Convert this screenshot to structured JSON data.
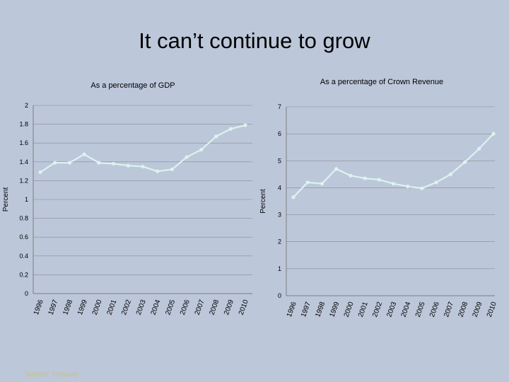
{
  "slide": {
    "title": "It can’t continue to grow",
    "source": "Source: Treasury"
  },
  "colors": {
    "background": "#bcc7da",
    "series": "#dcf3f0",
    "axis": "#7f7f7f",
    "grid": "#8c8c8c",
    "source_text": "#c8c27c"
  },
  "chart_data": [
    {
      "type": "line",
      "title": "As a percentage of GDP",
      "xlabel": "",
      "ylabel": "Percent",
      "categories": [
        "1996",
        "1997",
        "1998",
        "1999",
        "2000",
        "2001",
        "2002",
        "2003",
        "2004",
        "2005",
        "2006",
        "2007",
        "2008",
        "2009",
        "2010"
      ],
      "values": [
        1.29,
        1.39,
        1.39,
        1.48,
        1.39,
        1.38,
        1.36,
        1.35,
        1.3,
        1.32,
        1.45,
        1.53,
        1.67,
        1.75,
        1.79
      ],
      "ylim": [
        0,
        2
      ],
      "yticks": [
        "0",
        "0.2",
        "0.4",
        "0.6",
        "0.8",
        "1",
        "1.2",
        "1.4",
        "1.6",
        "1.8",
        "2"
      ],
      "grid": true
    },
    {
      "type": "line",
      "title": "As a percentage of Crown Revenue",
      "xlabel": "",
      "ylabel": "Percent",
      "categories": [
        "1996",
        "1997",
        "1998",
        "1999",
        "2000",
        "2001",
        "2002",
        "2003",
        "2004",
        "2005",
        "2006",
        "2007",
        "2008",
        "2009",
        "2010"
      ],
      "values": [
        3.65,
        4.2,
        4.15,
        4.7,
        4.45,
        4.35,
        4.3,
        4.15,
        4.05,
        3.98,
        4.2,
        4.5,
        4.95,
        5.45,
        6.0
      ],
      "ylim": [
        0,
        7
      ],
      "yticks": [
        "0",
        "1",
        "2",
        "3",
        "4",
        "5",
        "6",
        "7"
      ],
      "grid": true
    }
  ]
}
